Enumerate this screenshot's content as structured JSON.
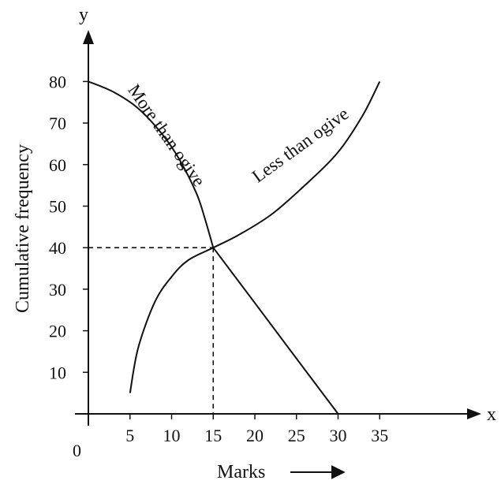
{
  "chart_data": {
    "type": "line",
    "xlabel": "Marks",
    "ylabel": "Cumulative frequency",
    "x_axis_letter": "x",
    "y_axis_letter": "y",
    "origin_label": "0",
    "xlim": [
      0,
      40
    ],
    "ylim": [
      0,
      90
    ],
    "x_ticks": [
      5,
      10,
      15,
      20,
      25,
      30,
      35
    ],
    "y_ticks": [
      10,
      20,
      30,
      40,
      50,
      60,
      70,
      80
    ],
    "grid": false,
    "series": [
      {
        "name": "Less than ogive",
        "x": [
          5,
          6,
          8,
          10,
          12,
          15,
          18,
          22,
          26,
          30,
          33,
          35
        ],
        "y": [
          5,
          16,
          27,
          33,
          37,
          40,
          43,
          48,
          55,
          63,
          72,
          80
        ]
      },
      {
        "name": "More than ogive",
        "x": [
          0,
          3,
          6,
          9,
          11,
          13,
          14,
          15,
          20,
          25,
          30
        ],
        "y": [
          80,
          77.5,
          73.5,
          67,
          61,
          53,
          47,
          40,
          26.7,
          13.3,
          0
        ]
      }
    ],
    "annotations": [
      {
        "type": "intersection",
        "x": 15,
        "y": 40
      }
    ]
  },
  "colors": {
    "ink": "#111111",
    "background": "#ffffff"
  }
}
